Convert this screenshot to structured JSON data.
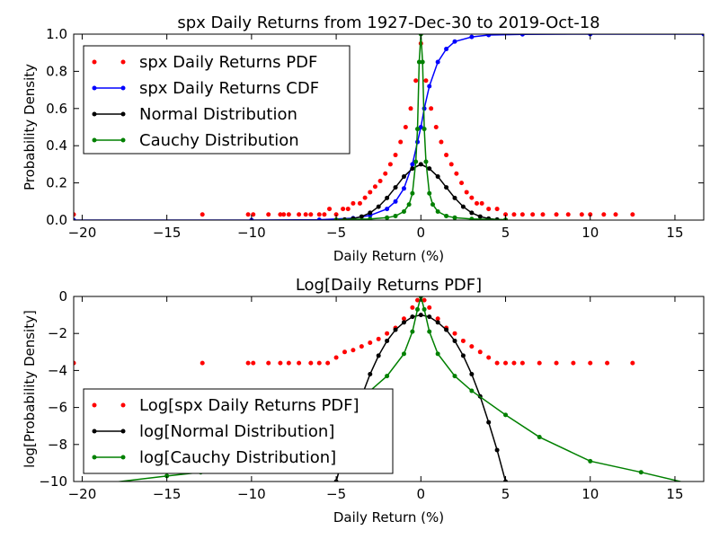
{
  "chart_data": [
    {
      "type": "scatter",
      "title": "spx Daily Returns from 1927-Dec-30 to 2019-Oct-18",
      "xlabel": "Daily Return (%)",
      "ylabel": "Probability Density",
      "xlim": [
        -20.5,
        16.7
      ],
      "ylim": [
        0,
        1.0
      ],
      "xticks": [
        -20,
        -15,
        -10,
        -5,
        0,
        5,
        10,
        15
      ],
      "yticks": [
        0.0,
        0.2,
        0.4,
        0.6,
        0.8,
        1.0
      ],
      "xtick_labels": [
        "−20",
        "−15",
        "−10",
        "−5",
        "0",
        "5",
        "10",
        "15"
      ],
      "ytick_labels": [
        "0.0",
        "0.2",
        "0.4",
        "0.6",
        "0.8",
        "1.0"
      ],
      "legend_position": "top-left",
      "series": [
        {
          "name": "spx Daily Returns PDF",
          "color": "#ff0000",
          "style": "markers",
          "x": [
            -20.5,
            -12.9,
            -10.2,
            -9.9,
            -9.0,
            -8.3,
            -8.1,
            -7.8,
            -7.2,
            -6.8,
            -6.5,
            -6.0,
            -5.7,
            -5.4,
            -5.0,
            -4.6,
            -4.3,
            -4.0,
            -3.6,
            -3.3,
            -3.0,
            -2.7,
            -2.4,
            -2.1,
            -1.8,
            -1.5,
            -1.2,
            -0.9,
            -0.6,
            -0.3,
            0.0,
            0.3,
            0.6,
            0.9,
            1.2,
            1.5,
            1.8,
            2.1,
            2.4,
            2.7,
            3.0,
            3.3,
            3.6,
            4.0,
            4.5,
            5.0,
            5.5,
            6.0,
            6.6,
            7.2,
            8.0,
            8.7,
            9.5,
            10.0,
            10.8,
            11.5,
            12.5
          ],
          "y": [
            0.03,
            0.03,
            0.03,
            0.03,
            0.03,
            0.03,
            0.03,
            0.03,
            0.03,
            0.03,
            0.03,
            0.03,
            0.03,
            0.06,
            0.03,
            0.06,
            0.06,
            0.09,
            0.09,
            0.12,
            0.15,
            0.18,
            0.21,
            0.25,
            0.3,
            0.35,
            0.42,
            0.5,
            0.6,
            0.75,
            0.95,
            0.75,
            0.6,
            0.5,
            0.42,
            0.35,
            0.3,
            0.25,
            0.2,
            0.15,
            0.12,
            0.09,
            0.09,
            0.06,
            0.06,
            0.03,
            0.03,
            0.03,
            0.03,
            0.03,
            0.03,
            0.03,
            0.03,
            0.03,
            0.03,
            0.03,
            0.03
          ]
        },
        {
          "name": "spx Daily Returns CDF",
          "color": "#0000ff",
          "style": "line-markers",
          "x": [
            -20.5,
            -10,
            -6,
            -4,
            -3,
            -2,
            -1.5,
            -1,
            -0.5,
            -0.2,
            0,
            0.2,
            0.5,
            1,
            1.5,
            2,
            3,
            4,
            6,
            10,
            16.7
          ],
          "y": [
            0.0,
            0.0,
            0.002,
            0.01,
            0.025,
            0.06,
            0.1,
            0.17,
            0.3,
            0.42,
            0.5,
            0.6,
            0.72,
            0.85,
            0.92,
            0.96,
            0.985,
            0.995,
            0.999,
            1.0,
            1.0
          ]
        },
        {
          "name": "Normal Distribution",
          "color": "#000000",
          "style": "line-markers",
          "x": [
            -5,
            -4.5,
            -4,
            -3.5,
            -3,
            -2.5,
            -2,
            -1.5,
            -1,
            -0.5,
            0,
            0.5,
            1,
            1.5,
            2,
            2.5,
            3,
            3.5,
            4,
            4.5,
            5
          ],
          "y": [
            0.001,
            0.003,
            0.008,
            0.019,
            0.039,
            0.072,
            0.119,
            0.176,
            0.234,
            0.277,
            0.3,
            0.277,
            0.234,
            0.176,
            0.119,
            0.072,
            0.039,
            0.019,
            0.008,
            0.003,
            0.001
          ]
        },
        {
          "name": "Cauchy Distribution",
          "color": "#008000",
          "style": "line-markers",
          "x": [
            -5,
            -3,
            -2,
            -1.5,
            -1,
            -0.7,
            -0.5,
            -0.3,
            -0.2,
            -0.1,
            0,
            0.1,
            0.2,
            0.3,
            0.5,
            0.7,
            1,
            1.5,
            2,
            3,
            5
          ],
          "y": [
            0.002,
            0.006,
            0.013,
            0.022,
            0.046,
            0.084,
            0.144,
            0.314,
            0.49,
            0.85,
            1.0,
            0.85,
            0.49,
            0.314,
            0.144,
            0.084,
            0.046,
            0.022,
            0.013,
            0.006,
            0.002
          ]
        }
      ]
    },
    {
      "type": "scatter",
      "title": "Log[Daily Returns PDF]",
      "xlabel": "Daily Return (%)",
      "ylabel": "log[Probability Density]",
      "xlim": [
        -20.5,
        16.7
      ],
      "ylim": [
        -10,
        0
      ],
      "xticks": [
        -20,
        -15,
        -10,
        -5,
        0,
        5,
        10,
        15
      ],
      "yticks": [
        -10,
        -8,
        -6,
        -4,
        -2,
        0
      ],
      "xtick_labels": [
        "−20",
        "−15",
        "−10",
        "−5",
        "0",
        "5",
        "10",
        "15"
      ],
      "ytick_labels": [
        "−10",
        "−8",
        "−6",
        "−4",
        "−2",
        "0"
      ],
      "legend_position": "bottom-left",
      "series": [
        {
          "name": "Log[spx Daily Returns PDF]",
          "color": "#ff0000",
          "style": "markers",
          "x": [
            -20.5,
            -12.9,
            -10.2,
            -9.9,
            -9.0,
            -8.3,
            -7.8,
            -7.2,
            -6.5,
            -6.0,
            -5.5,
            -5.0,
            -4.5,
            -4.0,
            -3.5,
            -3.0,
            -2.5,
            -2.0,
            -1.5,
            -1.0,
            -0.5,
            -0.2,
            0.0,
            0.2,
            0.5,
            1.0,
            1.5,
            2.0,
            2.5,
            3.0,
            3.5,
            4.0,
            4.5,
            5.0,
            5.5,
            6.0,
            7.0,
            8.0,
            9.0,
            10.0,
            11.0,
            12.5
          ],
          "y": [
            -3.6,
            -3.6,
            -3.6,
            -3.6,
            -3.6,
            -3.6,
            -3.6,
            -3.6,
            -3.6,
            -3.6,
            -3.6,
            -3.3,
            -3.0,
            -2.9,
            -2.7,
            -2.5,
            -2.3,
            -2.0,
            -1.7,
            -1.2,
            -0.6,
            -0.2,
            0.0,
            -0.2,
            -0.6,
            -1.2,
            -1.7,
            -2.0,
            -2.4,
            -2.7,
            -3.0,
            -3.3,
            -3.6,
            -3.6,
            -3.6,
            -3.6,
            -3.6,
            -3.6,
            -3.6,
            -3.6,
            -3.6,
            -3.6
          ]
        },
        {
          "name": "log[Normal Distribution]",
          "color": "#000000",
          "style": "line-markers",
          "x": [
            -5,
            -4.5,
            -4,
            -3.5,
            -3,
            -2.5,
            -2,
            -1.5,
            -1,
            -0.5,
            0,
            0.5,
            1,
            1.5,
            2,
            2.5,
            3,
            3.5,
            4,
            4.5,
            5
          ],
          "y": [
            -10.0,
            -8.3,
            -6.8,
            -5.4,
            -4.2,
            -3.2,
            -2.4,
            -1.8,
            -1.4,
            -1.1,
            -1.0,
            -1.1,
            -1.4,
            -1.8,
            -2.4,
            -3.2,
            -4.2,
            -5.4,
            -6.8,
            -8.3,
            -10.0
          ]
        },
        {
          "name": "log[Cauchy Distribution]",
          "color": "#008000",
          "style": "line-markers",
          "x": [
            -20.5,
            -15,
            -13,
            -10,
            -7,
            -5,
            -3,
            -2,
            -1,
            -0.5,
            -0.2,
            0,
            0.2,
            0.5,
            1,
            2,
            3,
            5,
            7,
            10,
            13,
            16.7
          ],
          "y": [
            -10.3,
            -9.7,
            -9.5,
            -8.9,
            -7.6,
            -6.4,
            -5.1,
            -4.3,
            -3.1,
            -1.9,
            -0.7,
            0.0,
            -0.7,
            -1.9,
            -3.1,
            -4.3,
            -5.1,
            -6.4,
            -7.6,
            -8.9,
            -9.5,
            -10.3
          ]
        }
      ]
    }
  ]
}
